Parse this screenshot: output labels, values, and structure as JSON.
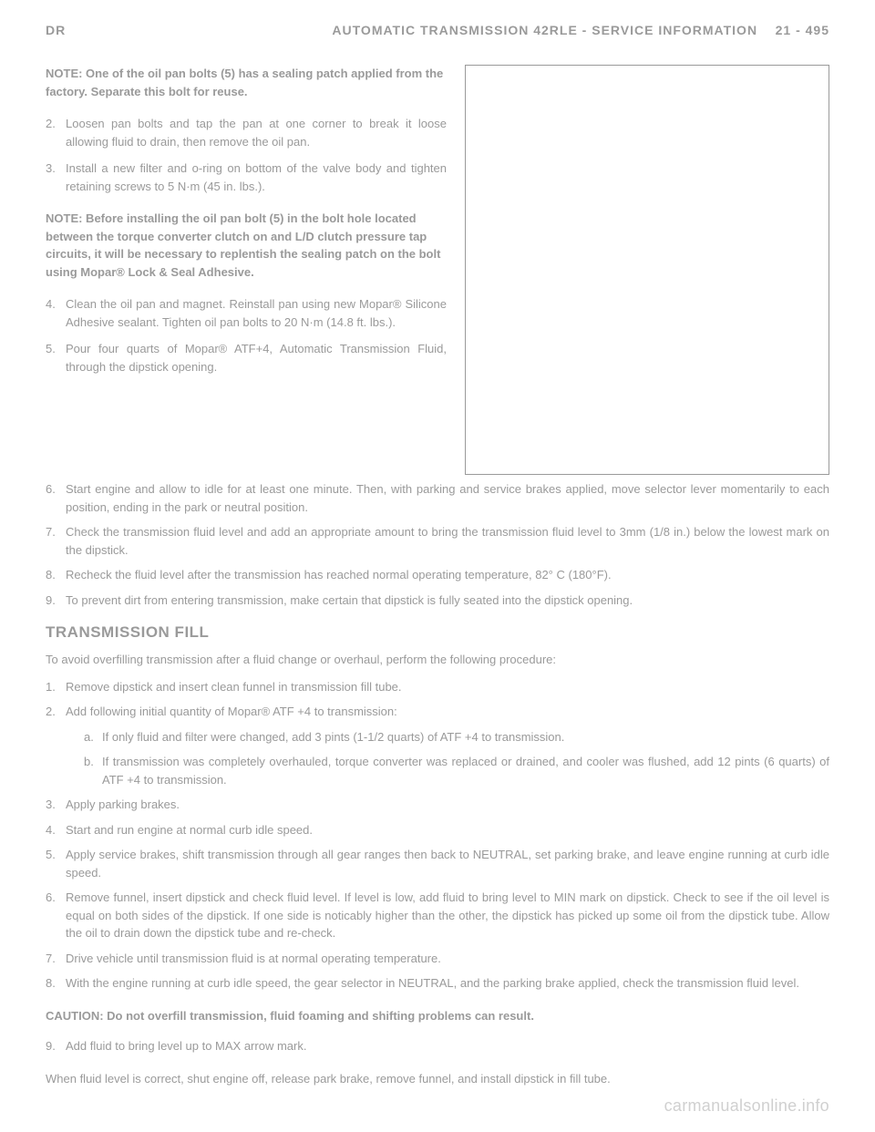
{
  "header": {
    "left": "DR",
    "right_title": "AUTOMATIC TRANSMISSION 42RLE - SERVICE INFORMATION",
    "page_num": "21 - 495"
  },
  "note1": "NOTE: One of the oil pan bolts (5) has a sealing patch applied from the factory. Separate this bolt for reuse.",
  "steps_top": [
    {
      "num": "2.",
      "text": "Loosen pan bolts and tap the pan at one corner to break it loose allowing fluid to drain, then remove the oil pan."
    },
    {
      "num": "3.",
      "text": "Install a new filter and o-ring on bottom of the valve body and tighten retaining screws to 5 N·m (45 in. lbs.)."
    }
  ],
  "note2": "NOTE: Before installing the oil pan bolt (5) in the bolt hole located between the torque converter clutch on and L/D clutch pressure tap circuits, it will be necessary to replentish the sealing patch on the bolt using Mopar® Lock & Seal Adhesive.",
  "steps_mid": [
    {
      "num": "4.",
      "text": "Clean the oil pan and magnet. Reinstall pan using new Mopar® Silicone Adhesive sealant. Tighten oil pan bolts to 20 N·m (14.8 ft. lbs.)."
    },
    {
      "num": "5.",
      "text": "Pour four quarts of Mopar® ATF+4, Automatic Transmission Fluid, through the dipstick opening."
    }
  ],
  "steps_full": [
    {
      "num": "6.",
      "text": "Start engine and allow to idle for at least one minute. Then, with parking and service brakes applied, move selector lever momentarily to each position, ending in the park or neutral position."
    },
    {
      "num": "7.",
      "text": "Check the transmission fluid level and add an appropriate amount to bring the transmission fluid level to 3mm (1/8 in.) below the lowest mark on the dipstick."
    },
    {
      "num": "8.",
      "text": "Recheck the fluid level after the transmission has reached normal operating temperature, 82° C (180°F)."
    },
    {
      "num": "9.",
      "text": "To prevent dirt from entering transmission, make certain that dipstick is fully seated into the dipstick opening."
    }
  ],
  "section_title": "TRANSMISSION FILL",
  "intro_text": "To avoid overfilling transmission after a fluid change or overhaul, perform the following procedure:",
  "fill_steps": [
    {
      "num": "1.",
      "text": "Remove dipstick and insert clean funnel in transmission fill tube."
    },
    {
      "num": "2.",
      "text": "Add following initial quantity of Mopar® ATF +4 to transmission:",
      "sub": [
        {
          "num": "a.",
          "text": "If only fluid and filter were changed, add 3 pints (1-1/2 quarts) of ATF +4 to transmission."
        },
        {
          "num": "b.",
          "text": "If transmission was completely overhauled, torque converter was replaced or drained, and cooler was flushed, add 12 pints (6 quarts) of ATF +4 to transmission."
        }
      ]
    },
    {
      "num": "3.",
      "text": "Apply parking brakes."
    },
    {
      "num": "4.",
      "text": "Start and run engine at normal curb idle speed."
    },
    {
      "num": "5.",
      "text": "Apply service brakes, shift transmission through all gear ranges then back to NEUTRAL, set parking brake, and leave engine running at curb idle speed."
    },
    {
      "num": "6.",
      "text": "Remove funnel, insert dipstick and check fluid level. If level is low, add fluid to bring level to MIN mark on dipstick. Check to see if the oil level is equal on both sides of the dipstick. If one side is noticably higher than the other, the dipstick has picked up some oil from the dipstick tube. Allow the oil to drain down the dipstick tube and re-check."
    },
    {
      "num": "7.",
      "text": "Drive vehicle until transmission fluid is at normal operating temperature."
    },
    {
      "num": "8.",
      "text": "With the engine running at curb idle speed, the gear selector in NEUTRAL, and the parking brake applied, check the transmission fluid level."
    }
  ],
  "caution": "CAUTION: Do not overfill transmission, fluid foaming and shifting problems can result.",
  "step9": {
    "num": "9.",
    "text": "Add fluid to bring level up to MAX arrow mark."
  },
  "closing_text": "When fluid level is correct, shut engine off, release park brake, remove funnel, and install dipstick in fill tube.",
  "watermark": "carmanualsonline.info",
  "colors": {
    "text": "#9a9a9a",
    "border": "#9a9a9a",
    "watermark": "#d0d0d0",
    "background": "#ffffff"
  }
}
